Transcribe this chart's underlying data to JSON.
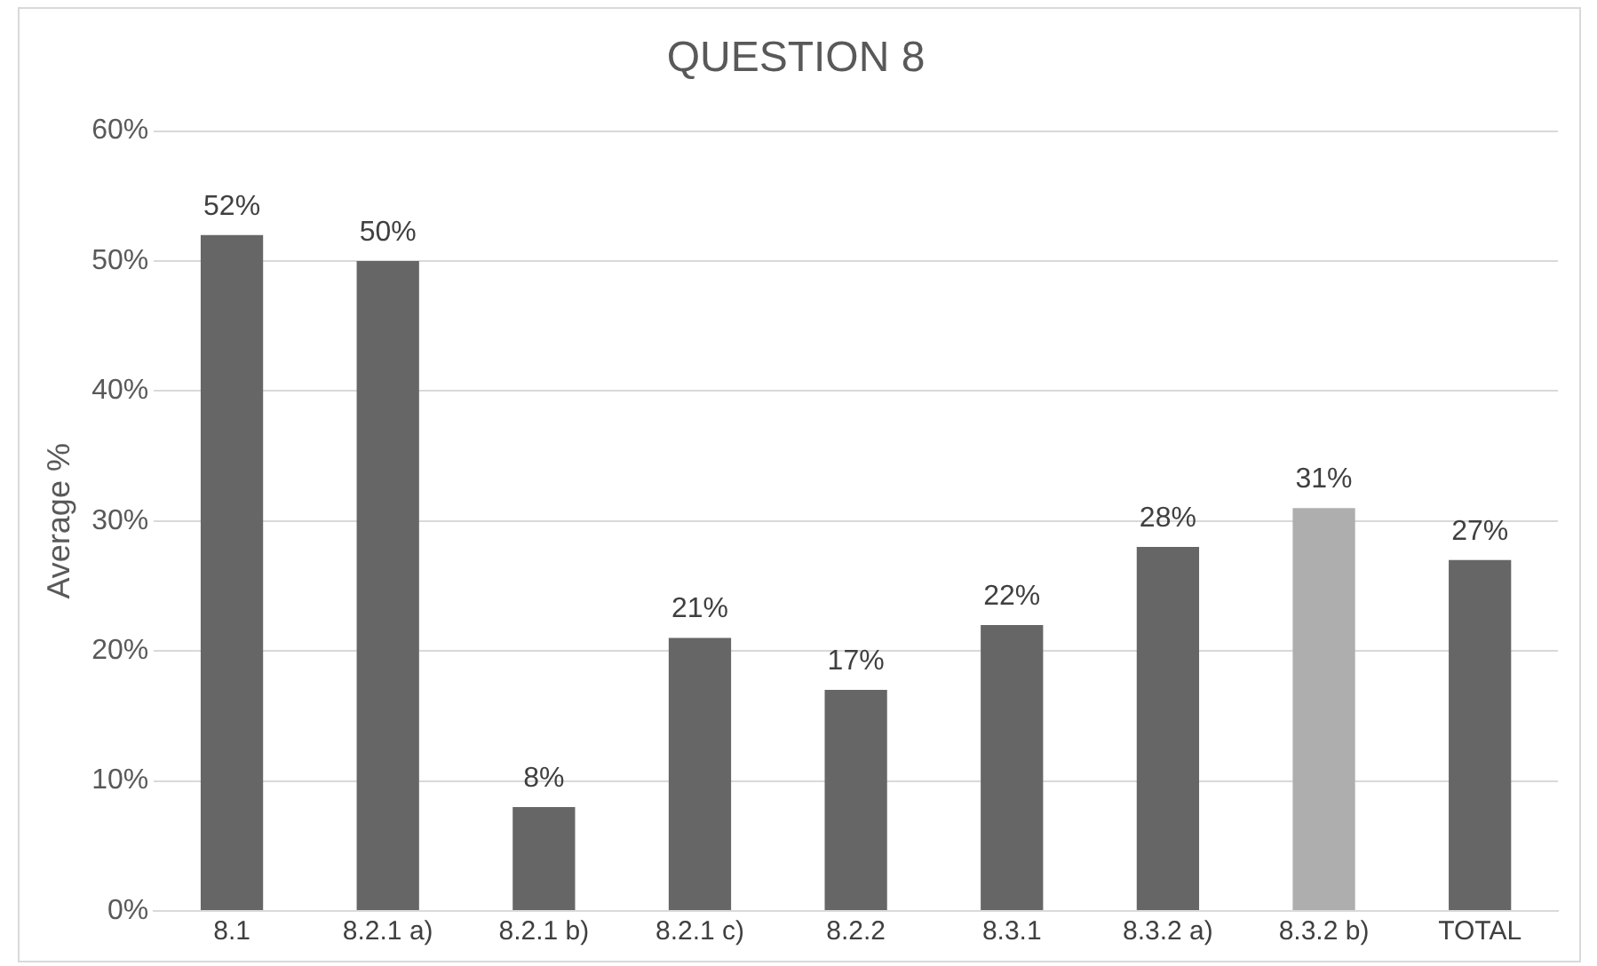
{
  "chart_data": {
    "type": "bar",
    "title": "QUESTION 8",
    "ylabel": "Average %",
    "categories": [
      "8.1",
      "8.2.1 a)",
      "8.2.1 b)",
      "8.2.1 c)",
      "8.2.2",
      "8.3.1",
      "8.3.2 a)",
      "8.3.2 b)",
      "TOTAL"
    ],
    "values": [
      52,
      50,
      8,
      21,
      17,
      22,
      28,
      31,
      27
    ],
    "colors": [
      "#666666",
      "#666666",
      "#666666",
      "#666666",
      "#666666",
      "#666666",
      "#666666",
      "#aeaeae",
      "#666666"
    ],
    "value_labels": [
      "52%",
      "50%",
      "8%",
      "21%",
      "17%",
      "22%",
      "28%",
      "31%",
      "27%"
    ],
    "ylim": [
      0,
      60
    ],
    "yticks": [
      {
        "value": 0,
        "label": "0%"
      },
      {
        "value": 10,
        "label": "10%"
      },
      {
        "value": 20,
        "label": "20%"
      },
      {
        "value": 30,
        "label": "30%"
      },
      {
        "value": 40,
        "label": "40%"
      },
      {
        "value": 50,
        "label": "50%"
      },
      {
        "value": 60,
        "label": "60%"
      }
    ],
    "grid": "y",
    "legend": false
  }
}
